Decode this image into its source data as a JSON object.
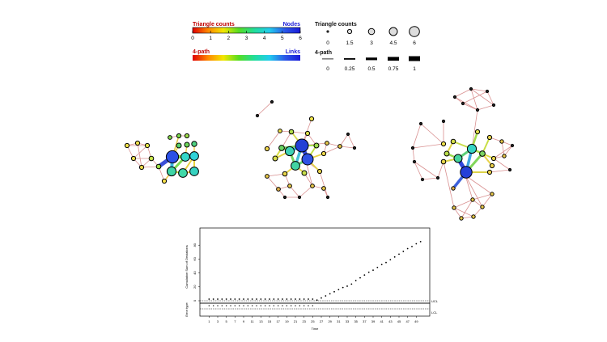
{
  "legend": {
    "node_bar": {
      "left_title": "Triangle counts",
      "right_title": "Nodes",
      "ticks": [
        "0",
        "1",
        "2",
        "3",
        "4",
        "5",
        "6"
      ]
    },
    "link_bar": {
      "left_title": "4-path",
      "right_title": "Links"
    },
    "size_legend": {
      "title": "Triangle counts",
      "labels": [
        "0",
        "1.5",
        "3",
        "4.5",
        "6"
      ]
    },
    "width_legend": {
      "title": "4-path",
      "labels": [
        "0",
        "0.25",
        "0.5",
        "0.75",
        "1"
      ]
    }
  },
  "colors": {
    "ramp": [
      "#e00000",
      "#ff8800",
      "#f2e600",
      "#55dd22",
      "#22dd99",
      "#22ccee",
      "#2b57e8",
      "#1a1ad8"
    ],
    "edge_default": "#d99090",
    "node_stroke": "#000000"
  },
  "chart_data": {
    "type": "scatter",
    "ylabel": "Cumulative Sum\nof Deviations",
    "ylabel_lower": "Error type",
    "xlabel": "Time",
    "x_ticks": [
      "1",
      "3",
      "5",
      "7",
      "9",
      "11",
      "13",
      "15",
      "17",
      "19",
      "21",
      "23",
      "25",
      "27",
      "29",
      "31",
      "33",
      "35",
      "37",
      "39",
      "41",
      "43",
      "45",
      "47",
      "49"
    ],
    "y_ticks": [
      "0",
      "20",
      "40",
      "60",
      "80"
    ],
    "ylim": [
      0,
      100
    ],
    "xlim": [
      0,
      51
    ],
    "threshold_labels": [
      "UCL",
      "LCL"
    ],
    "x": [
      1,
      2,
      3,
      4,
      5,
      6,
      7,
      8,
      9,
      10,
      11,
      12,
      13,
      14,
      15,
      16,
      17,
      18,
      19,
      20,
      21,
      22,
      23,
      24,
      25,
      26,
      27,
      28,
      29,
      30,
      31,
      32,
      33,
      34,
      35,
      36,
      37,
      38,
      39,
      40,
      41,
      42,
      43,
      44,
      45,
      46,
      47,
      48,
      49,
      50
    ],
    "y": [
      0,
      0,
      0,
      0,
      0,
      0,
      0,
      0,
      0,
      0,
      0,
      0,
      0,
      0,
      0,
      0,
      0,
      0,
      0,
      0,
      0,
      0,
      0,
      0,
      0,
      1,
      4,
      7,
      10,
      13,
      16,
      19,
      21,
      24,
      29,
      33,
      37,
      41,
      44,
      48,
      52,
      55,
      59,
      63,
      67,
      71,
      75,
      78,
      82,
      85
    ]
  }
}
